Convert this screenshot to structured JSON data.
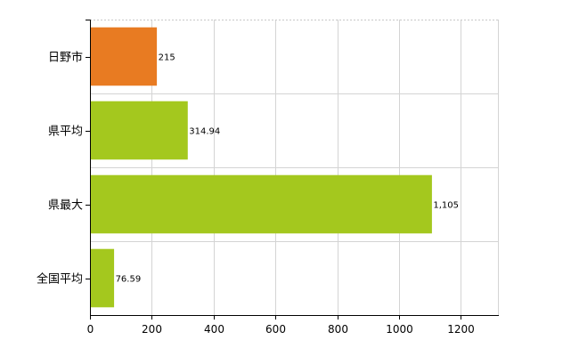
{
  "chart_data": {
    "type": "bar",
    "orientation": "horizontal",
    "categories": [
      "日野市",
      "県平均",
      "県最大",
      "全国平均"
    ],
    "values": [
      215,
      314.94,
      1105,
      76.59
    ],
    "data_labels": [
      "215",
      "314.94",
      "1,105",
      "76.59"
    ],
    "bar_colors": [
      "#e87b22",
      "#a4c81e",
      "#a4c81e",
      "#a4c81e"
    ],
    "xlim": [
      0,
      1320
    ],
    "x_ticks": [
      0,
      200,
      400,
      600,
      800,
      1000,
      1200
    ],
    "grid": true,
    "title": "",
    "xlabel": "",
    "ylabel": ""
  }
}
